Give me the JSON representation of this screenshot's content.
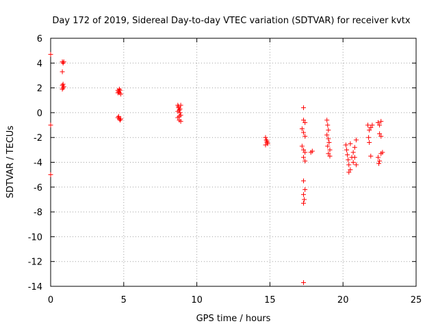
{
  "chart_data": {
    "type": "scatter",
    "title": "Day 172 of 2019, Sidereal Day-to-day VTEC variation (SDTVAR) for receiver kvtx",
    "xlabel": "GPS time / hours",
    "ylabel": "SDTVAR / TECUs",
    "xlim": [
      0,
      25
    ],
    "ylim": [
      -14,
      6
    ],
    "xticks": [
      0,
      5,
      10,
      15,
      20,
      25
    ],
    "yticks": [
      -14,
      -12,
      -10,
      -8,
      -6,
      -4,
      -2,
      0,
      2,
      4,
      6
    ],
    "xtick_labels": [
      "0",
      "5",
      "10",
      "15",
      "20",
      "25"
    ],
    "ytick_labels": [
      "-14",
      "-12",
      "-10",
      "-8",
      "-6",
      "-4",
      "-2",
      "0",
      "2",
      "4",
      "6"
    ],
    "grid": true,
    "marker": "+",
    "color": "#ff0000",
    "series": [
      {
        "name": "kvtx",
        "points": [
          [
            0.0,
            4.7
          ],
          [
            0.0,
            -1.0
          ],
          [
            0.0,
            -5.0
          ],
          [
            0.8,
            4.1
          ],
          [
            0.85,
            4.0
          ],
          [
            0.9,
            4.1
          ],
          [
            0.8,
            3.3
          ],
          [
            0.85,
            2.3
          ],
          [
            0.8,
            2.2
          ],
          [
            0.9,
            2.1
          ],
          [
            0.8,
            1.9
          ],
          [
            0.85,
            2.0
          ],
          [
            4.6,
            1.8
          ],
          [
            4.65,
            1.7
          ],
          [
            4.7,
            1.6
          ],
          [
            4.75,
            1.8
          ],
          [
            4.8,
            1.5
          ],
          [
            4.6,
            1.6
          ],
          [
            4.7,
            1.9
          ],
          [
            4.6,
            -0.4
          ],
          [
            4.7,
            -0.5
          ],
          [
            4.8,
            -0.5
          ],
          [
            4.75,
            -0.6
          ],
          [
            4.65,
            -0.3
          ],
          [
            8.7,
            0.6
          ],
          [
            8.75,
            0.4
          ],
          [
            8.8,
            0.2
          ],
          [
            8.85,
            0.0
          ],
          [
            8.9,
            -0.2
          ],
          [
            8.7,
            -0.4
          ],
          [
            8.8,
            -0.6
          ],
          [
            8.9,
            -0.7
          ],
          [
            8.75,
            0.5
          ],
          [
            8.85,
            0.3
          ],
          [
            8.7,
            0.1
          ],
          [
            8.9,
            0.6
          ],
          [
            8.8,
            -0.3
          ],
          [
            14.7,
            -2.0
          ],
          [
            14.75,
            -2.2
          ],
          [
            14.8,
            -2.3
          ],
          [
            14.85,
            -2.5
          ],
          [
            14.7,
            -2.6
          ],
          [
            14.8,
            -2.4
          ],
          [
            17.3,
            0.4
          ],
          [
            17.2,
            -1.3
          ],
          [
            17.3,
            -0.6
          ],
          [
            17.4,
            -0.8
          ],
          [
            17.3,
            -1.6
          ],
          [
            17.4,
            -1.9
          ],
          [
            17.2,
            -2.7
          ],
          [
            17.3,
            -3.0
          ],
          [
            17.4,
            -3.2
          ],
          [
            17.3,
            -3.6
          ],
          [
            17.4,
            -3.9
          ],
          [
            17.3,
            -5.5
          ],
          [
            17.4,
            -6.2
          ],
          [
            17.3,
            -6.6
          ],
          [
            17.35,
            -7.0
          ],
          [
            17.3,
            -7.3
          ],
          [
            17.3,
            -13.7
          ],
          [
            17.8,
            -3.2
          ],
          [
            17.9,
            -3.1
          ],
          [
            18.9,
            -0.6
          ],
          [
            18.95,
            -1.0
          ],
          [
            19.0,
            -1.4
          ],
          [
            18.9,
            -1.8
          ],
          [
            19.0,
            -2.1
          ],
          [
            19.05,
            -2.4
          ],
          [
            18.95,
            -2.7
          ],
          [
            19.1,
            -3.0
          ],
          [
            19.0,
            -3.3
          ],
          [
            19.1,
            -3.5
          ],
          [
            20.2,
            -2.6
          ],
          [
            20.25,
            -3.0
          ],
          [
            20.3,
            -3.4
          ],
          [
            20.35,
            -3.8
          ],
          [
            20.4,
            -4.2
          ],
          [
            20.5,
            -4.6
          ],
          [
            20.4,
            -4.8
          ],
          [
            20.6,
            -3.6
          ],
          [
            20.7,
            -3.2
          ],
          [
            20.8,
            -2.8
          ],
          [
            20.9,
            -2.2
          ],
          [
            20.8,
            -3.6
          ],
          [
            20.9,
            -4.2
          ],
          [
            20.7,
            -4.0
          ],
          [
            20.5,
            -2.5
          ],
          [
            21.7,
            -1.0
          ],
          [
            21.8,
            -1.4
          ],
          [
            21.75,
            -2.0
          ],
          [
            21.8,
            -2.4
          ],
          [
            21.9,
            -1.2
          ],
          [
            22.0,
            -1.0
          ],
          [
            21.9,
            -3.5
          ],
          [
            22.4,
            -0.8
          ],
          [
            22.5,
            -1.0
          ],
          [
            22.6,
            -0.7
          ],
          [
            22.5,
            -1.7
          ],
          [
            22.6,
            -1.9
          ],
          [
            22.4,
            -3.6
          ],
          [
            22.5,
            -3.9
          ],
          [
            22.6,
            -3.3
          ],
          [
            22.7,
            -3.2
          ],
          [
            22.45,
            -4.1
          ]
        ]
      }
    ]
  }
}
